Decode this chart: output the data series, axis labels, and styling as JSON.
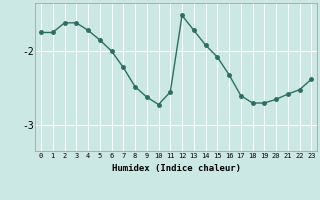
{
  "x": [
    0,
    1,
    2,
    3,
    4,
    5,
    6,
    7,
    8,
    9,
    10,
    11,
    12,
    13,
    14,
    15,
    16,
    17,
    18,
    19,
    20,
    21,
    22,
    23
  ],
  "y": [
    -1.75,
    -1.75,
    -1.62,
    -1.62,
    -1.72,
    -1.85,
    -2.0,
    -2.22,
    -2.48,
    -2.62,
    -2.72,
    -2.55,
    -1.52,
    -1.72,
    -1.92,
    -2.08,
    -2.32,
    -2.6,
    -2.7,
    -2.7,
    -2.65,
    -2.58,
    -2.52,
    -2.38
  ],
  "xlabel": "Humidex (Indice chaleur)",
  "ylim": [
    -3.35,
    -1.35
  ],
  "xlim": [
    -0.5,
    23.5
  ],
  "yticks": [
    -3,
    -2
  ],
  "ytick_labels": [
    "-3",
    "-2"
  ],
  "xticks": [
    0,
    1,
    2,
    3,
    4,
    5,
    6,
    7,
    8,
    9,
    10,
    11,
    12,
    13,
    14,
    15,
    16,
    17,
    18,
    19,
    20,
    21,
    22,
    23
  ],
  "bg_color": "#cce8e4",
  "line_color": "#2d6e63",
  "grid_color": "#ffffff",
  "marker_size": 2.5,
  "line_width": 1.0
}
